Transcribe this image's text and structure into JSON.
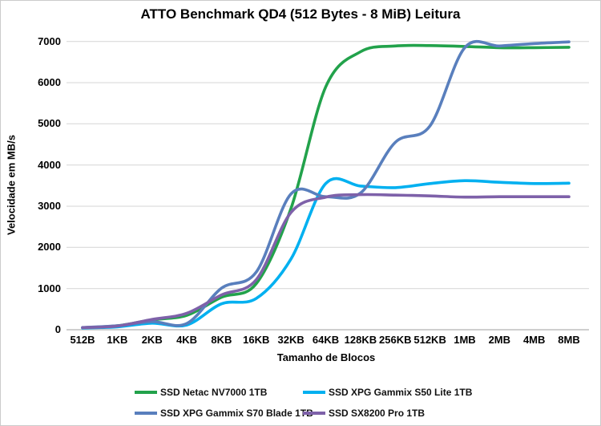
{
  "frame": {
    "background": "#ffffff",
    "border_color": "#cbcbcb",
    "gridline_color": "#d9d9d9",
    "axis_line_color": "#bfbfbf",
    "text_color": "#000000"
  },
  "chart_data": {
    "type": "line",
    "title": "ATTO Benchmark QD4 (512 Bytes - 8 MiB) Leitura",
    "xlabel": "Tamanho de Blocos",
    "ylabel": "Velocidade em MB/s",
    "ylim": [
      0,
      7000
    ],
    "y_ticks": [
      0,
      1000,
      2000,
      3000,
      4000,
      5000,
      6000,
      7000
    ],
    "grid": "horizontal",
    "smooth_lines": true,
    "legend_position": "bottom",
    "categories": [
      "512B",
      "1KB",
      "2KB",
      "4KB",
      "8KB",
      "16KB",
      "32KB",
      "64KB",
      "128KB",
      "256KB",
      "512KB",
      "1MB",
      "2MB",
      "4MB",
      "8MB"
    ],
    "series": [
      {
        "name": "SSD Netac NV7000 1TB",
        "color": "#22a24b",
        "values": [
          50,
          95,
          240,
          350,
          790,
          1120,
          2950,
          5900,
          6750,
          6890,
          6900,
          6880,
          6850,
          6850,
          6860
        ]
      },
      {
        "name": "SSD XPG Gammix S50 Lite 1TB",
        "color": "#00b0f0",
        "values": [
          40,
          70,
          160,
          115,
          630,
          760,
          1720,
          3550,
          3490,
          3450,
          3550,
          3620,
          3580,
          3550,
          3560
        ]
      },
      {
        "name": "SSD XPG Gammix S70 Blade 1TB",
        "color": "#597fbd",
        "values": [
          55,
          95,
          195,
          150,
          1010,
          1400,
          3300,
          3230,
          3320,
          4550,
          4950,
          6850,
          6890,
          6950,
          6990
        ]
      },
      {
        "name": "SSD SX8200 Pro 1TB",
        "color": "#7e61a9",
        "values": [
          50,
          90,
          250,
          400,
          845,
          1215,
          2850,
          3220,
          3280,
          3270,
          3250,
          3220,
          3230,
          3230,
          3230
        ]
      }
    ]
  },
  "legend": {
    "rows": [
      {
        "col1_series": 0,
        "col2_series": 1
      },
      {
        "col1_series": 2,
        "col2_series": 3
      }
    ]
  }
}
